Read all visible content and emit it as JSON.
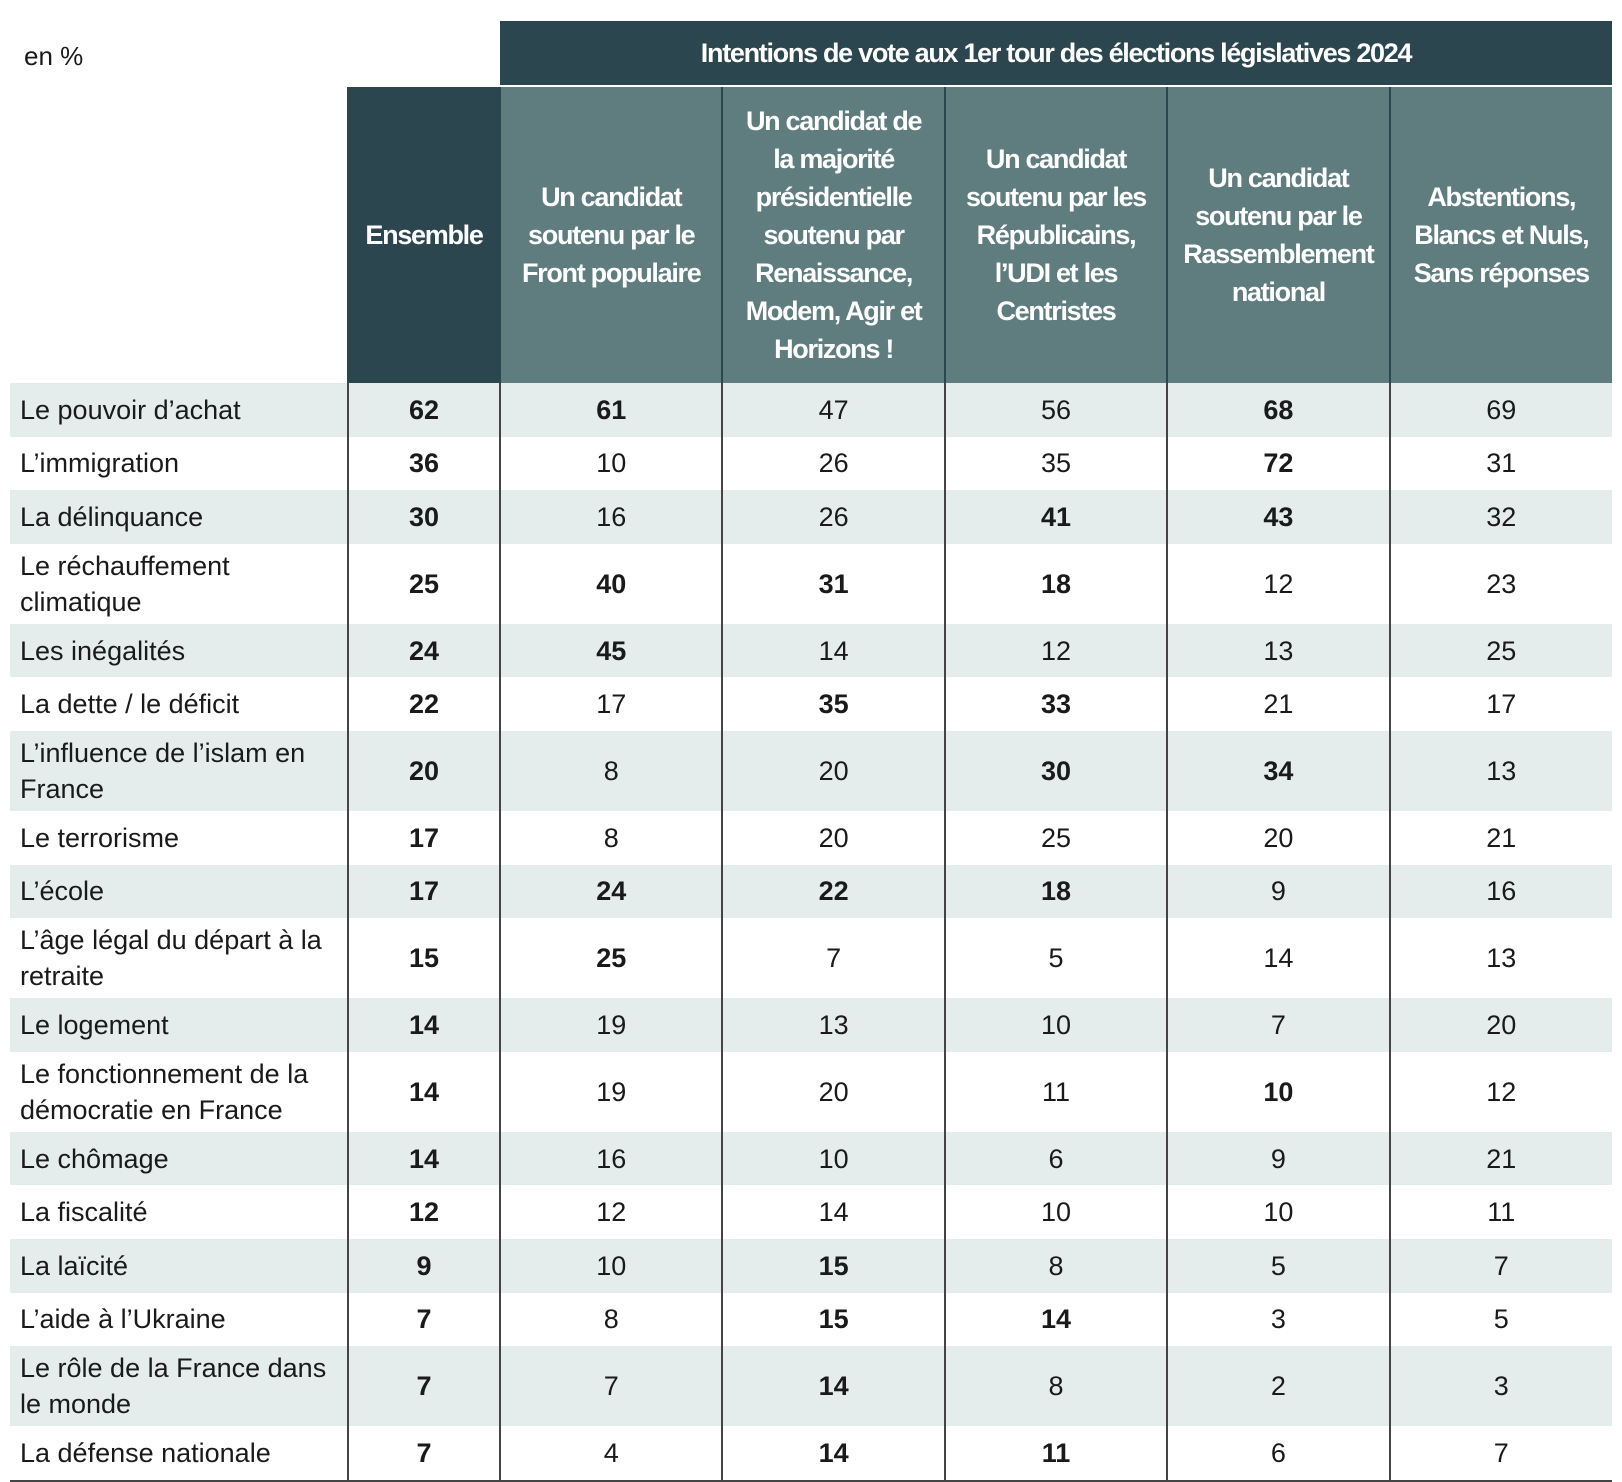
{
  "unit_label": "en %",
  "super_header": "Intentions de vote aux 1er tour des élections législatives 2024",
  "columns": [
    "Ensemble",
    "Un candidat soutenu par le Front populaire",
    "Un candidat de la majorité présidentielle soutenu par Renaissance, Modem, Agir et Horizons !",
    "Un candidat soutenu par les Républicains, l’UDI et les Centristes",
    "Un candidat soutenu par le Rassemblement national",
    "Abstentions, Blancs et Nuls, Sans réponses"
  ],
  "rows": [
    {
      "label": "Le pouvoir d’achat",
      "values": [
        62,
        61,
        47,
        56,
        68,
        69
      ],
      "bold": [
        true,
        true,
        false,
        false,
        true,
        false
      ]
    },
    {
      "label": "L’immigration",
      "values": [
        36,
        10,
        26,
        35,
        72,
        31
      ],
      "bold": [
        true,
        false,
        false,
        false,
        true,
        false
      ]
    },
    {
      "label": "La délinquance",
      "values": [
        30,
        16,
        26,
        41,
        43,
        32
      ],
      "bold": [
        true,
        false,
        false,
        true,
        true,
        false
      ]
    },
    {
      "label": "Le réchauffement climatique",
      "values": [
        25,
        40,
        31,
        18,
        12,
        23
      ],
      "bold": [
        true,
        true,
        true,
        true,
        false,
        false
      ]
    },
    {
      "label": "Les inégalités",
      "values": [
        24,
        45,
        14,
        12,
        13,
        25
      ],
      "bold": [
        true,
        true,
        false,
        false,
        false,
        false
      ]
    },
    {
      "label": "La dette / le déficit",
      "values": [
        22,
        17,
        35,
        33,
        21,
        17
      ],
      "bold": [
        true,
        false,
        true,
        true,
        false,
        false
      ]
    },
    {
      "label": "L’influence de l’islam en France",
      "values": [
        20,
        8,
        20,
        30,
        34,
        13
      ],
      "bold": [
        true,
        false,
        false,
        true,
        true,
        false
      ]
    },
    {
      "label": "Le terrorisme",
      "values": [
        17,
        8,
        20,
        25,
        20,
        21
      ],
      "bold": [
        true,
        false,
        false,
        false,
        false,
        false
      ]
    },
    {
      "label": "L’école",
      "values": [
        17,
        24,
        22,
        18,
        9,
        16
      ],
      "bold": [
        true,
        true,
        true,
        true,
        false,
        false
      ]
    },
    {
      "label": "L’âge légal du départ à la retraite",
      "values": [
        15,
        25,
        7,
        5,
        14,
        13
      ],
      "bold": [
        true,
        true,
        false,
        false,
        false,
        false
      ]
    },
    {
      "label": "Le logement",
      "values": [
        14,
        19,
        13,
        10,
        7,
        20
      ],
      "bold": [
        true,
        false,
        false,
        false,
        false,
        false
      ]
    },
    {
      "label": "Le fonctionnement de la démocratie en France",
      "values": [
        14,
        19,
        20,
        11,
        10,
        12
      ],
      "bold": [
        true,
        false,
        false,
        false,
        true,
        false
      ]
    },
    {
      "label": "Le chômage",
      "values": [
        14,
        16,
        10,
        6,
        9,
        21
      ],
      "bold": [
        true,
        false,
        false,
        false,
        false,
        false
      ]
    },
    {
      "label": "La fiscalité",
      "values": [
        12,
        12,
        14,
        10,
        10,
        11
      ],
      "bold": [
        true,
        false,
        false,
        false,
        false,
        false
      ]
    },
    {
      "label": "La laïcité",
      "values": [
        9,
        10,
        15,
        8,
        5,
        7
      ],
      "bold": [
        true,
        false,
        true,
        false,
        false,
        false
      ]
    },
    {
      "label": "L’aide à l’Ukraine",
      "values": [
        7,
        8,
        15,
        14,
        3,
        5
      ],
      "bold": [
        true,
        false,
        true,
        true,
        false,
        false
      ]
    },
    {
      "label": "Le rôle de la France dans le monde",
      "values": [
        7,
        7,
        14,
        8,
        2,
        3
      ],
      "bold": [
        true,
        false,
        true,
        false,
        false,
        false
      ]
    },
    {
      "label": "La défense nationale",
      "values": [
        7,
        4,
        14,
        11,
        6,
        7
      ],
      "bold": [
        true,
        false,
        true,
        true,
        false,
        false
      ]
    }
  ]
}
